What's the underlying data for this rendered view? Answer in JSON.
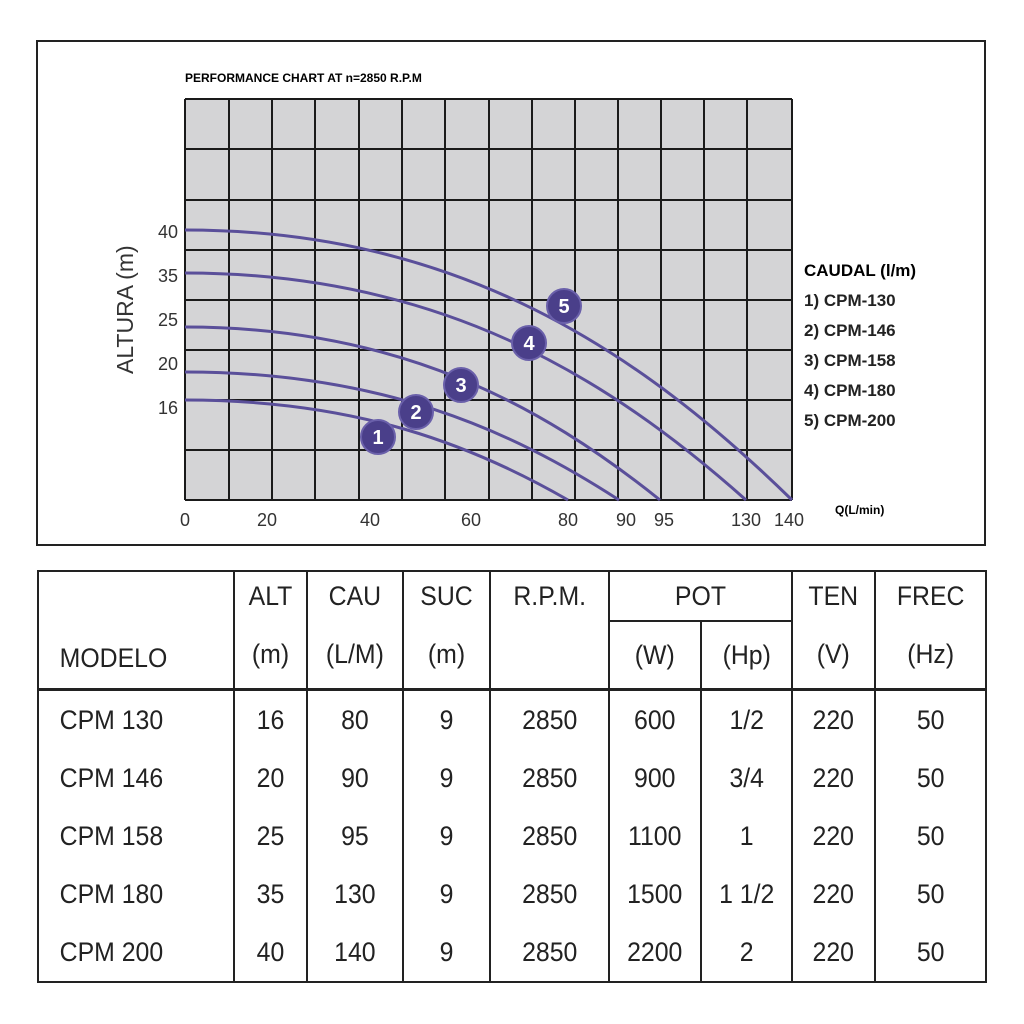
{
  "chart_data": {
    "type": "line",
    "title": "PERFORMANCE CHART AT n=2850 R.P.M",
    "xlabel": "Q(L/min)",
    "ylabel": "ALTURA (m)",
    "x_ticks": [
      "0",
      "20",
      "40",
      "60",
      "80",
      "90",
      "95",
      "130",
      "140"
    ],
    "y_ticks": [
      "40",
      "35",
      "25",
      "20",
      "16"
    ],
    "grid": true,
    "legend_title": "CAUDAL (l/m)",
    "legend_position": "right",
    "series": [
      {
        "id": "1",
        "name": "1) CPM-130",
        "shutoff_head": 16,
        "max_flow": 80
      },
      {
        "id": "2",
        "name": "2) CPM-146",
        "shutoff_head": 20,
        "max_flow": 90
      },
      {
        "id": "3",
        "name": "3) CPM-158",
        "shutoff_head": 25,
        "max_flow": 95
      },
      {
        "id": "4",
        "name": "4) CPM-180",
        "shutoff_head": 35,
        "max_flow": 130
      },
      {
        "id": "5",
        "name": "5) CPM-200",
        "shutoff_head": 40,
        "max_flow": 140
      }
    ],
    "colors": {
      "curve": "#5a4f9a",
      "marker": "#4a3f8a",
      "grid_bg": "#d4d4d6"
    }
  },
  "table": {
    "headers_top": [
      "ALT",
      "CAU",
      "SUC",
      "R.P.M.",
      "POT",
      "TEN",
      "FREC"
    ],
    "headers_bottom": [
      "MODELO",
      "(m)",
      "(L/M)",
      "(m)",
      "(W)",
      "(Hp)",
      "(V)",
      "(Hz)"
    ],
    "rows": [
      [
        "CPM 130",
        "16",
        "80",
        "9",
        "2850",
        "600",
        "1/2",
        "220",
        "50"
      ],
      [
        "CPM 146",
        "20",
        "90",
        "9",
        "2850",
        "900",
        "3/4",
        "220",
        "50"
      ],
      [
        "CPM 158",
        "25",
        "95",
        "9",
        "2850",
        "1100",
        "1",
        "220",
        "50"
      ],
      [
        "CPM 180",
        "35",
        "130",
        "9",
        "2850",
        "1500",
        "1 1/2",
        "220",
        "50"
      ],
      [
        "CPM 200",
        "40",
        "140",
        "9",
        "2850",
        "2200",
        "2",
        "220",
        "50"
      ]
    ]
  }
}
